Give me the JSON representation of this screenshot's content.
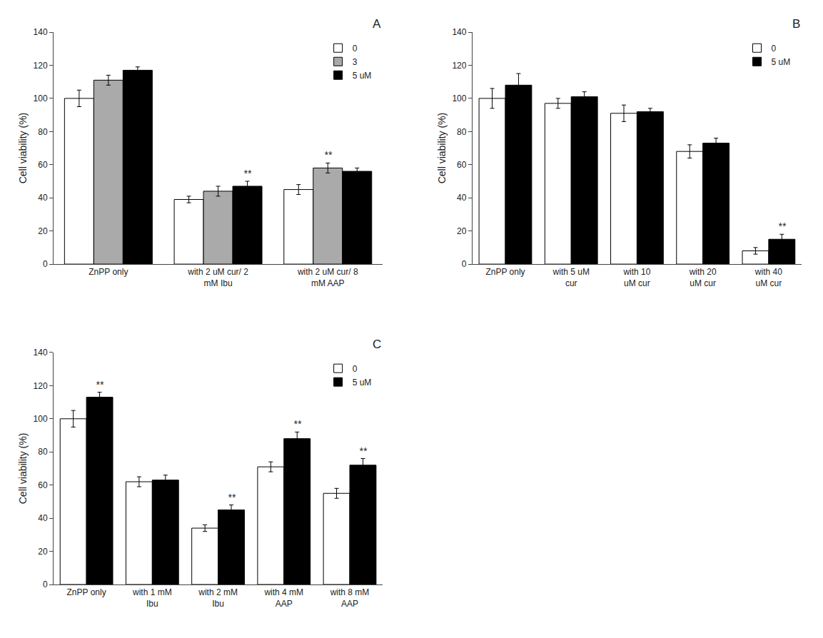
{
  "chart_data": [
    {
      "type": "bar",
      "title": "A",
      "categories": [
        "ZnPP only",
        "with 2 uM cur/ 2\nmM Ibu",
        "with 2 uM cur/ 8\nmM AAP"
      ],
      "series": [
        {
          "name": "0",
          "color": "white",
          "values": [
            100,
            39,
            45
          ],
          "errors": [
            5,
            2,
            3
          ]
        },
        {
          "name": "3",
          "color": "#aaaaaa",
          "values": [
            111,
            44,
            58
          ],
          "errors": [
            3,
            3,
            3
          ]
        },
        {
          "name": "5 uM",
          "color": "black",
          "values": [
            117,
            47,
            56
          ],
          "errors": [
            2,
            3,
            2
          ]
        }
      ],
      "annotations": [
        {
          "category": "with 2 uM cur/ 2\nmM Ibu",
          "series": "5 uM",
          "text": "**"
        },
        {
          "category": "with 2 uM cur/ 8\nmM AAP",
          "series": "3",
          "text": "**"
        }
      ],
      "ylabel": "Cell viability (%)",
      "ylim": [
        0,
        140
      ],
      "yticks": [
        0,
        20,
        40,
        60,
        80,
        100,
        120,
        140
      ],
      "grid": false,
      "legend": "upper right"
    },
    {
      "type": "bar",
      "title": "B",
      "categories": [
        "ZnPP only",
        "with 5 uM\ncur",
        "with 10\nuM cur",
        "with 20\nuM cur",
        "with 40\nuM cur"
      ],
      "series": [
        {
          "name": "0",
          "color": "white",
          "values": [
            100,
            97,
            91,
            68,
            8
          ],
          "errors": [
            6,
            3,
            5,
            4,
            2
          ]
        },
        {
          "name": "5 uM",
          "color": "black",
          "values": [
            108,
            101,
            92,
            73,
            15
          ],
          "errors": [
            7,
            3,
            2,
            3,
            3
          ]
        }
      ],
      "annotations": [
        {
          "category": "with 40\nuM cur",
          "series": "5 uM",
          "text": "**"
        }
      ],
      "ylabel": "Cell viability (%)",
      "ylim": [
        0,
        140
      ],
      "yticks": [
        0,
        20,
        40,
        60,
        80,
        100,
        120,
        140
      ],
      "grid": false,
      "legend": "upper right"
    },
    {
      "type": "bar",
      "title": "C",
      "categories": [
        "ZnPP only",
        "with 1 mM\nIbu",
        "with 2 mM\nIbu",
        "with 4 mM\nAAP",
        "with 8 mM\nAAP"
      ],
      "series": [
        {
          "name": "0",
          "color": "white",
          "values": [
            100,
            62,
            34,
            71,
            55
          ],
          "errors": [
            5,
            3,
            2,
            3,
            3
          ]
        },
        {
          "name": "5 uM",
          "color": "black",
          "values": [
            113,
            63,
            45,
            88,
            72
          ],
          "errors": [
            3,
            3,
            3,
            4,
            4
          ]
        }
      ],
      "annotations": [
        {
          "category": "ZnPP only",
          "series": "5 uM",
          "text": "**"
        },
        {
          "category": "with 2 mM\nIbu",
          "series": "5 uM",
          "text": "**"
        },
        {
          "category": "with 4 mM\nAAP",
          "series": "5 uM",
          "text": "**"
        },
        {
          "category": "with 8 mM\nAAP",
          "series": "5 uM",
          "text": "**"
        }
      ],
      "ylabel": "Cell viability (%)",
      "ylim": [
        0,
        140
      ],
      "yticks": [
        0,
        20,
        40,
        60,
        80,
        100,
        120,
        140
      ],
      "grid": false,
      "legend": "upper right"
    }
  ]
}
